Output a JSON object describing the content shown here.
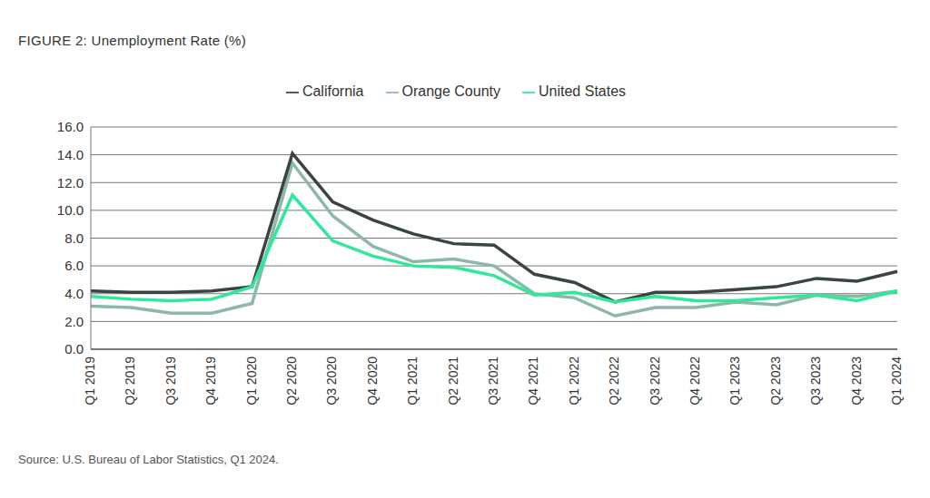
{
  "chart_data": {
    "type": "line",
    "title": "FIGURE 2: Unemployment Rate (%)",
    "subtitle": "Source: U.S. Bureau of Labor Statistics, Q1 2024.",
    "categories": [
      "Q1 2019",
      "Q2 2019",
      "Q3 2019",
      "Q4 2019",
      "Q1 2020",
      "Q2 2020",
      "Q3 2020",
      "Q4 2020",
      "Q1 2021",
      "Q2 2021",
      "Q3 2021",
      "Q4 2021",
      "Q1 2022",
      "Q2 2022",
      "Q3 2022",
      "Q4 2022",
      "Q1 2023",
      "Q2 2023",
      "Q3 2023",
      "Q4 2023",
      "Q1 2024"
    ],
    "series": [
      {
        "name": "Orange County",
        "color": "#8cb8a9",
        "values": [
          3.1,
          3.0,
          2.6,
          2.6,
          3.3,
          13.4,
          9.6,
          7.4,
          6.3,
          6.5,
          6.0,
          4.0,
          3.7,
          2.4,
          3.0,
          3.0,
          3.4,
          3.2,
          3.9,
          3.8,
          4.2
        ]
      },
      {
        "name": "California",
        "color": "#3a4443",
        "values": [
          4.2,
          4.1,
          4.1,
          4.2,
          4.5,
          14.1,
          10.6,
          9.3,
          8.3,
          7.6,
          7.5,
          5.4,
          4.8,
          3.4,
          4.1,
          4.1,
          4.3,
          4.5,
          5.1,
          4.9,
          5.6
        ]
      },
      {
        "name": "United States",
        "color": "#2ee89c",
        "values": [
          3.8,
          3.6,
          3.5,
          3.6,
          4.5,
          11.1,
          7.8,
          6.7,
          6.0,
          5.9,
          5.3,
          3.9,
          4.1,
          3.4,
          3.8,
          3.5,
          3.5,
          3.7,
          3.9,
          3.5,
          4.2
        ]
      }
    ],
    "ylim": [
      0,
      16
    ],
    "yticks": [
      {
        "value": 0,
        "label": "0.0"
      },
      {
        "value": 2,
        "label": "2.0"
      },
      {
        "value": 4,
        "label": "4.0"
      },
      {
        "value": 6,
        "label": "6.0"
      },
      {
        "value": 8,
        "label": "8.0"
      },
      {
        "value": 10,
        "label": "10.0"
      },
      {
        "value": 12,
        "label": "12.0"
      },
      {
        "value": 14,
        "label": "14.0"
      },
      {
        "value": 16,
        "label": "16.0"
      }
    ],
    "grid": true,
    "legend": "top"
  }
}
